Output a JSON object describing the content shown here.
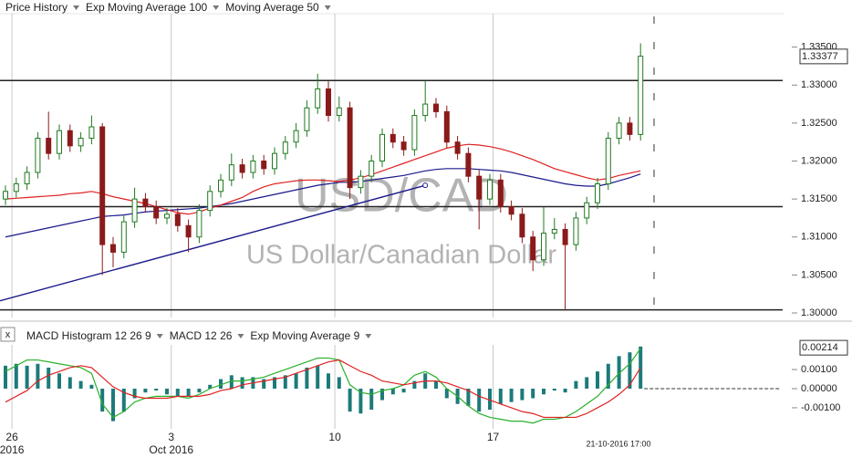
{
  "chart_data": [
    {
      "type": "candlestick",
      "name": "Price History",
      "color": "#1f7a1f",
      "down_color": "#8b1a1a",
      "open": [
        1.315,
        1.316,
        1.317,
        1.3185,
        1.323,
        1.321,
        1.324,
        1.322,
        1.323,
        1.3245,
        1.309,
        1.308,
        1.312,
        1.315,
        1.314,
        1.3125,
        1.313,
        1.3115,
        1.31,
        1.3135,
        1.316,
        1.3175,
        1.3195,
        1.3185,
        1.32,
        1.319,
        1.321,
        1.3225,
        1.324,
        1.327,
        1.3295,
        1.326,
        1.327,
        1.3165,
        1.318,
        1.32,
        1.3235,
        1.3225,
        1.3215,
        1.326,
        1.3275,
        1.3265,
        1.3225,
        1.321,
        1.318,
        1.315,
        1.3175,
        1.314,
        1.313,
        1.31,
        1.307,
        1.3105,
        1.311,
        1.309,
        1.3125,
        1.3145,
        1.317,
        1.323,
        1.325,
        1.3235
      ],
      "high": [
        1.3168,
        1.3178,
        1.3193,
        1.3238,
        1.3265,
        1.3248,
        1.3248,
        1.3238,
        1.326,
        1.325,
        1.31,
        1.3128,
        1.3165,
        1.3158,
        1.3148,
        1.3138,
        1.3138,
        1.3123,
        1.3143,
        1.3168,
        1.3183,
        1.321,
        1.3203,
        1.3208,
        1.3208,
        1.3218,
        1.3233,
        1.325,
        1.328,
        1.3315,
        1.3305,
        1.3285,
        1.3278,
        1.3188,
        1.3208,
        1.3243,
        1.3243,
        1.3233,
        1.3268,
        1.3305,
        1.3283,
        1.3273,
        1.3233,
        1.3218,
        1.3188,
        1.3183,
        1.3183,
        1.3148,
        1.3138,
        1.3108,
        1.314,
        1.3125,
        1.3118,
        1.3133,
        1.3153,
        1.3178,
        1.3238,
        1.3258,
        1.3258,
        1.3355
      ],
      "low": [
        1.3142,
        1.3152,
        1.3162,
        1.3177,
        1.3202,
        1.3202,
        1.3212,
        1.3212,
        1.3222,
        1.305,
        1.306,
        1.3072,
        1.3112,
        1.3132,
        1.3117,
        1.3117,
        1.3107,
        1.308,
        1.3092,
        1.3127,
        1.3152,
        1.3167,
        1.3177,
        1.3177,
        1.3182,
        1.3182,
        1.3202,
        1.3217,
        1.3232,
        1.3262,
        1.3252,
        1.3252,
        1.315,
        1.3157,
        1.3172,
        1.3192,
        1.3217,
        1.3207,
        1.3207,
        1.3252,
        1.3257,
        1.3217,
        1.3202,
        1.3172,
        1.311,
        1.3142,
        1.3132,
        1.3122,
        1.3092,
        1.3055,
        1.3062,
        1.3097,
        1.3005,
        1.3082,
        1.3117,
        1.3137,
        1.3162,
        1.3222,
        1.3227,
        1.3227
      ],
      "close": [
        1.316,
        1.317,
        1.3185,
        1.323,
        1.321,
        1.324,
        1.322,
        1.323,
        1.3245,
        1.309,
        1.308,
        1.312,
        1.315,
        1.314,
        1.3125,
        1.313,
        1.3115,
        1.31,
        1.3135,
        1.316,
        1.3175,
        1.3195,
        1.3185,
        1.32,
        1.319,
        1.321,
        1.3225,
        1.324,
        1.327,
        1.3295,
        1.326,
        1.327,
        1.3165,
        1.318,
        1.32,
        1.3235,
        1.3225,
        1.3215,
        1.326,
        1.3275,
        1.3265,
        1.3225,
        1.321,
        1.318,
        1.315,
        1.3175,
        1.314,
        1.313,
        1.31,
        1.307,
        1.3105,
        1.311,
        1.309,
        1.3125,
        1.3145,
        1.317,
        1.323,
        1.325,
        1.3235,
        1.3338
      ],
      "overlays": [
        {
          "name": "Exp Moving Average 100",
          "color": "#1a1a8c",
          "values": [
            1.31,
            1.3103,
            1.3106,
            1.3109,
            1.3112,
            1.3115,
            1.3118,
            1.3121,
            1.3124,
            1.3127,
            1.3128,
            1.3129,
            1.3131,
            1.3133,
            1.3134,
            1.3135,
            1.3136,
            1.3137,
            1.3138,
            1.314,
            1.3142,
            1.3144,
            1.3147,
            1.315,
            1.3153,
            1.3156,
            1.3159,
            1.3162,
            1.3165,
            1.3168,
            1.317,
            1.3172,
            1.3172,
            1.3173,
            1.3175,
            1.3177,
            1.3179,
            1.3181,
            1.3184,
            1.3187,
            1.3189,
            1.319,
            1.319,
            1.319,
            1.3189,
            1.3188,
            1.3187,
            1.3185,
            1.3182,
            1.3179,
            1.3176,
            1.3173,
            1.317,
            1.3168,
            1.3167,
            1.3167,
            1.317,
            1.3174,
            1.3178,
            1.3183
          ]
        },
        {
          "name": "Moving Average 50",
          "color": "#e02020",
          "values": [
            1.315,
            1.3151,
            1.3152,
            1.3153,
            1.3154,
            1.3155,
            1.3157,
            1.3158,
            1.316,
            1.3157,
            1.3153,
            1.315,
            1.3147,
            1.3144,
            1.314,
            1.3136,
            1.3132,
            1.313,
            1.3133,
            1.3138,
            1.3142,
            1.3147,
            1.3152,
            1.316,
            1.3166,
            1.317,
            1.3172,
            1.3174,
            1.3175,
            1.3175,
            1.3174,
            1.3173,
            1.3175,
            1.3178,
            1.3182,
            1.3187,
            1.3192,
            1.3197,
            1.3202,
            1.3207,
            1.3212,
            1.3217,
            1.322,
            1.3222,
            1.3221,
            1.3219,
            1.3216,
            1.3212,
            1.3207,
            1.3202,
            1.3196,
            1.319,
            1.3186,
            1.3182,
            1.3178,
            1.3175,
            1.3177,
            1.3181,
            1.3184,
            1.3187
          ]
        }
      ],
      "horizontal_lines": [
        1.3306,
        1.314,
        1.3004
      ],
      "trendline": {
        "start": [
          0,
          1.3016
        ],
        "end": [
          39,
          1.3168
        ]
      },
      "watermark": "USD/CAD",
      "watermark_subtitle": "US Dollar/Canadian Dollar",
      "ylim": [
        1.2994,
        1.3394
      ],
      "yticks": [
        {
          "value": 1.3,
          "label": "1.30000"
        },
        {
          "value": 1.305,
          "label": "1.30500"
        },
        {
          "value": 1.31,
          "label": "1.31000"
        },
        {
          "value": 1.315,
          "label": "1.31500"
        },
        {
          "value": 1.32,
          "label": "1.32000"
        },
        {
          "value": 1.325,
          "label": "1.32500"
        },
        {
          "value": 1.33,
          "label": "1.33000"
        },
        {
          "value": 1.335,
          "label": "1.33500"
        }
      ],
      "last_value": 1.33377
    },
    {
      "type": "macd",
      "series": [
        {
          "name": "MACD Histogram 12 26 9",
          "color": "#1d7a7a",
          "values": [
            0.0012,
            0.0013,
            0.0012,
            0.0013,
            0.0011,
            0.0008,
            0.0006,
            0.0004,
            0.0002,
            -0.0012,
            -0.0017,
            -0.0012,
            -0.0005,
            -0.0002,
            -0.0001,
            -0.0003,
            -0.0004,
            -0.0004,
            -0.0002,
            0.0002,
            0.0005,
            0.0007,
            0.0006,
            0.0006,
            0.0005,
            0.0006,
            0.0007,
            0.0008,
            0.0011,
            0.0012,
            0.0008,
            0.0006,
            -0.0012,
            -0.0013,
            -0.0011,
            -0.0006,
            -0.0003,
            -0.0002,
            0.0004,
            0.0008,
            0.0004,
            -0.0005,
            -0.0008,
            -0.0009,
            -0.0012,
            -0.0011,
            -0.0008,
            -0.0007,
            -0.0006,
            -0.0005,
            -0.0003,
            -0.0001,
            -0.0002,
            0.0004,
            0.0006,
            0.0009,
            0.0013,
            0.0017,
            0.0019,
            0.0022
          ]
        },
        {
          "name": "MACD 12 26",
          "color": "#2ab02a",
          "values": [
            0.0009,
            0.0012,
            0.0015,
            0.0015,
            0.0014,
            0.0013,
            0.0012,
            0.0011,
            0.0008,
            -0.0008,
            -0.0015,
            -0.0012,
            -0.0007,
            -0.0005,
            -0.0004,
            -0.0004,
            -0.0004,
            -0.0005,
            -0.0003,
            0.0,
            0.0002,
            0.0004,
            0.0004,
            0.0005,
            0.0006,
            0.0008,
            0.001,
            0.0012,
            0.0014,
            0.0016,
            0.0016,
            0.0015,
            0.0002,
            -0.0002,
            -0.0003,
            -0.0001,
            0.0,
            0.0002,
            0.0007,
            0.0009,
            0.0006,
            0.0,
            -0.0004,
            -0.0009,
            -0.0013,
            -0.0015,
            -0.0016,
            -0.0017,
            -0.0017,
            -0.0018,
            -0.0016,
            -0.0016,
            -0.0015,
            -0.0012,
            -0.0008,
            -0.0004,
            0.0002,
            0.0008,
            0.0013,
            0.0021
          ]
        },
        {
          "name": "Exp Moving Average 9",
          "color": "#e02020",
          "values": [
            -0.0007,
            -0.0004,
            -0.0001,
            0.0004,
            0.0007,
            0.0009,
            0.0011,
            0.0012,
            0.0011,
            0.0006,
            0.0001,
            -0.0002,
            -0.0004,
            -0.0005,
            -0.0005,
            -0.0005,
            -0.0004,
            -0.0004,
            -0.0004,
            -0.0003,
            -0.0001,
            0.0,
            0.0002,
            0.0003,
            0.0004,
            0.0005,
            0.0006,
            0.0008,
            0.001,
            0.0012,
            0.0014,
            0.0015,
            0.0012,
            0.0009,
            0.0007,
            0.0004,
            0.0003,
            0.0002,
            0.0003,
            0.0004,
            0.0004,
            0.0003,
            0.0001,
            -0.0001,
            -0.0004,
            -0.0006,
            -0.0008,
            -0.001,
            -0.0012,
            -0.0013,
            -0.0015,
            -0.0015,
            -0.0015,
            -0.0015,
            -0.0013,
            -0.001,
            -0.0007,
            -0.0003,
            0.0002,
            0.0011
          ]
        }
      ],
      "ylim": [
        -0.0021,
        0.00229
      ],
      "yticks": [
        {
          "value": 0.001,
          "label": "0.00100"
        },
        {
          "value": 0,
          "label": "0.00000"
        },
        {
          "value": -0.001,
          "label": "-0.00100"
        }
      ],
      "last_value": 0.00214
    }
  ],
  "x_labels": [
    {
      "index": 0.6,
      "label": "26",
      "sub": "2016"
    },
    {
      "index": 15.4,
      "label": "3",
      "sub": "Oct 2016"
    },
    {
      "index": 30.6,
      "label": "10"
    },
    {
      "index": 45.3,
      "label": "17"
    }
  ],
  "cursor_label": "21-10-2016 17:00"
}
